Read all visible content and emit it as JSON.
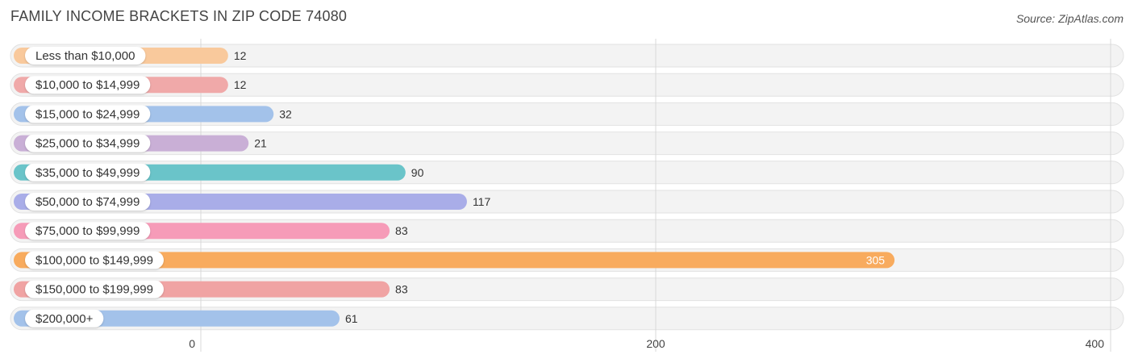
{
  "title": "FAMILY INCOME BRACKETS IN ZIP CODE 74080",
  "source": "Source: ZipAtlas.com",
  "chart_data": {
    "type": "bar",
    "orientation": "horizontal",
    "title": "FAMILY INCOME BRACKETS IN ZIP CODE 74080",
    "categories": [
      "Less than $10,000",
      "$10,000 to $14,999",
      "$15,000 to $24,999",
      "$25,000 to $34,999",
      "$35,000 to $49,999",
      "$50,000 to $74,999",
      "$75,000 to $99,999",
      "$100,000 to $149,999",
      "$150,000 to $199,999",
      "$200,000+"
    ],
    "values": [
      12,
      12,
      32,
      21,
      90,
      117,
      83,
      305,
      83,
      61
    ],
    "value_labels": [
      "12",
      "12",
      "32",
      "21",
      "90",
      "117",
      "83",
      "305",
      "83",
      "61"
    ],
    "colors": [
      "#f9c99c",
      "#f0a9a9",
      "#a3c2ea",
      "#c9afd6",
      "#6ac4c9",
      "#a9ade8",
      "#f69bb8",
      "#f8ab5e",
      "#f0a3a3",
      "#a3c2ea"
    ],
    "xlim": [
      0,
      400
    ],
    "xticks": [
      0,
      200,
      400
    ],
    "tick_labels": [
      "0",
      "200",
      "400"
    ],
    "xlabel": "",
    "ylabel": "",
    "grid": true,
    "legend": "none"
  }
}
